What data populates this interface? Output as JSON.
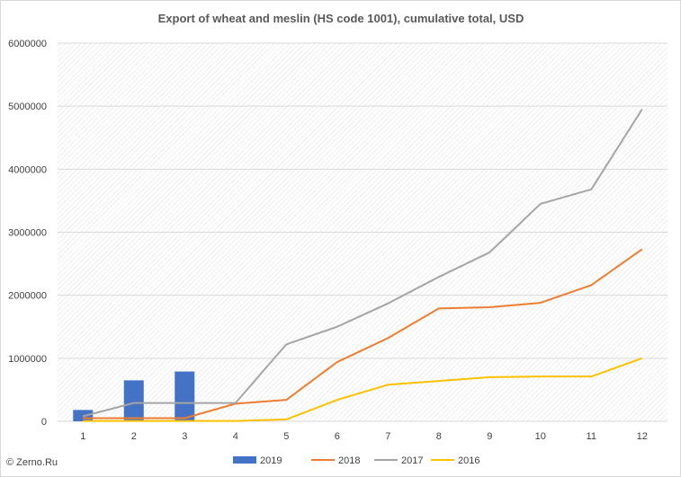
{
  "source_label": "© Zerno.Ru",
  "chart_data": {
    "type": "bar",
    "title": "Export of wheat and meslin (HS code 1001), cumulative total, USD",
    "xlabel": "",
    "ylabel": "",
    "categories": [
      "1",
      "2",
      "3",
      "4",
      "5",
      "6",
      "7",
      "8",
      "9",
      "10",
      "11",
      "12"
    ],
    "ylim": [
      0,
      6000000
    ],
    "yticks": [
      "0",
      "1000000",
      "2000000",
      "3000000",
      "4000000",
      "5000000",
      "6000000"
    ],
    "grid": true,
    "legend_position": "bottom",
    "series": [
      {
        "name": "2019",
        "type": "bar",
        "color": "#4472c4",
        "values": [
          180000,
          650000,
          790000,
          null,
          null,
          null,
          null,
          null,
          null,
          null,
          null,
          null
        ]
      },
      {
        "name": "2018",
        "type": "line",
        "color": "#ed7d31",
        "values": [
          50000,
          50000,
          50000,
          280000,
          340000,
          940000,
          1320000,
          1790000,
          1810000,
          1880000,
          2160000,
          2730000
        ]
      },
      {
        "name": "2017",
        "type": "line",
        "color": "#a5a5a5",
        "values": [
          80000,
          290000,
          290000,
          290000,
          1220000,
          1500000,
          1870000,
          2290000,
          2680000,
          3450000,
          3680000,
          4950000
        ]
      },
      {
        "name": "2016",
        "type": "line",
        "color": "#ffc000",
        "values": [
          5000,
          5000,
          5000,
          5000,
          30000,
          340000,
          580000,
          640000,
          700000,
          710000,
          710000,
          1000000
        ]
      }
    ]
  }
}
